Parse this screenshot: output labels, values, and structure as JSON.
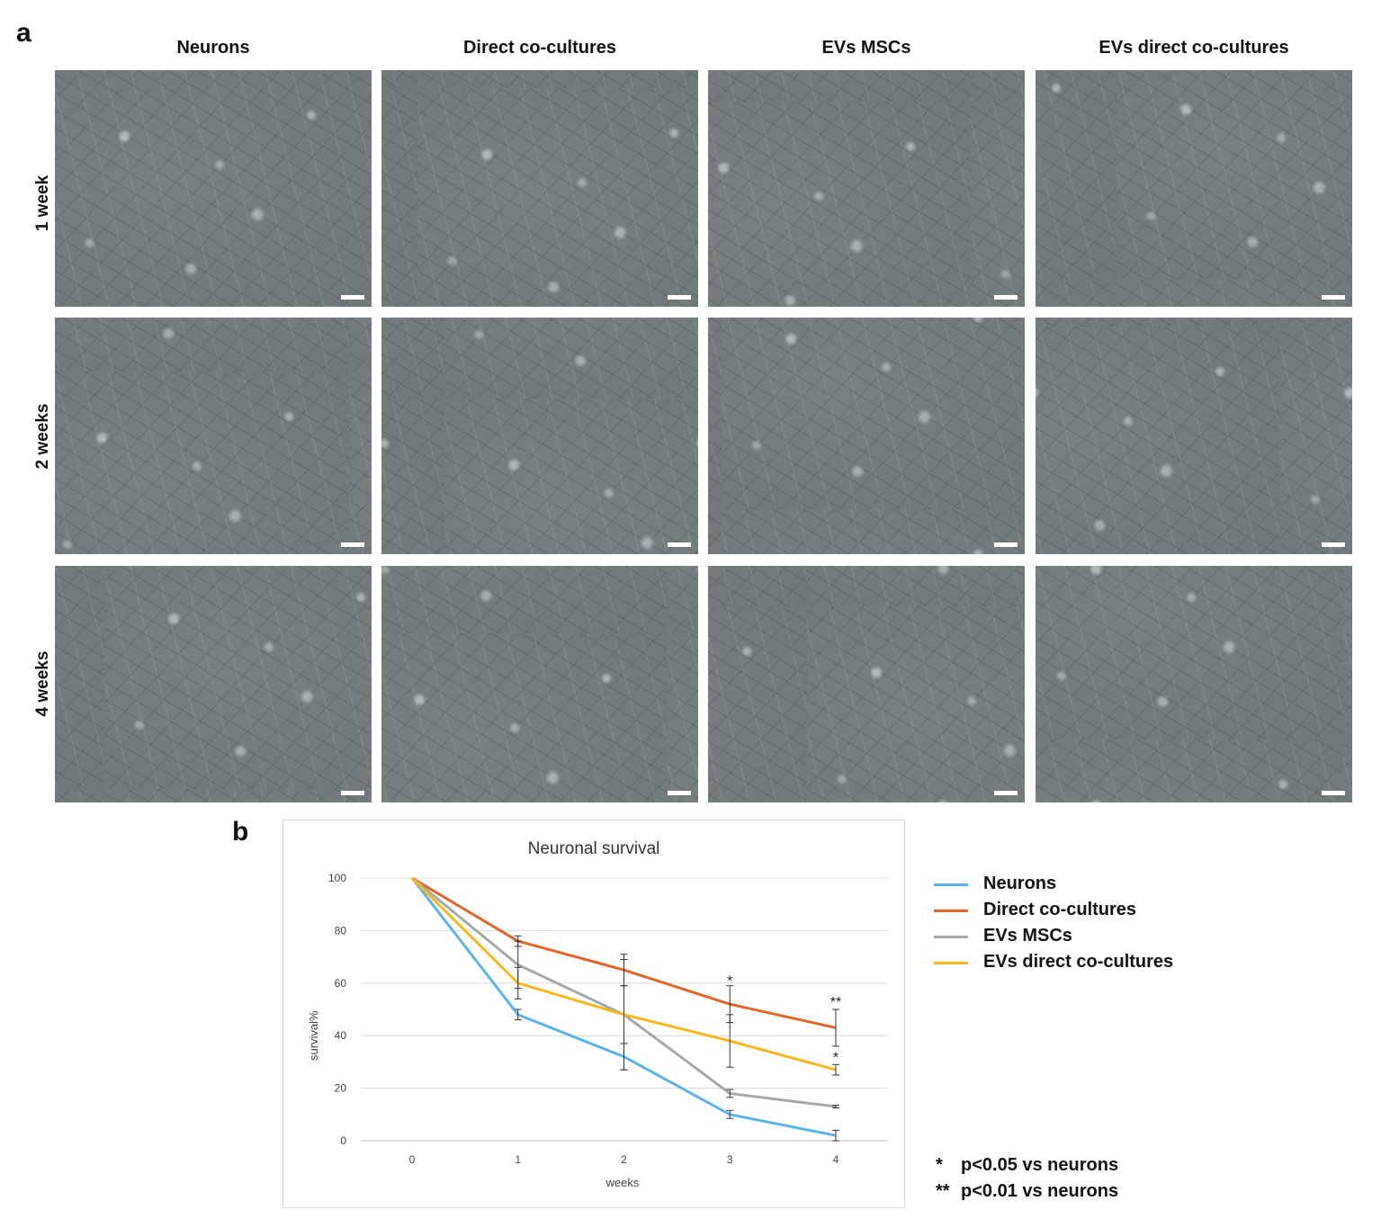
{
  "panel_a": {
    "letter": "a",
    "columns": [
      "Neurons",
      "Direct co-cultures",
      "EVs MSCs",
      "EVs direct co-cultures"
    ],
    "rows": [
      "1 week",
      "2 weeks",
      "4 weeks"
    ]
  },
  "panel_b": {
    "letter": "b",
    "legend": [
      "Neurons",
      "Direct co-cultures",
      "EVs MSCs",
      "EVs direct co-cultures"
    ],
    "notes": [
      {
        "symbol": "*",
        "text": "p<0.05 vs neurons"
      },
      {
        "symbol": "**",
        "text": "p<0.01 vs neurons"
      }
    ]
  },
  "chart_data": {
    "type": "line",
    "title": "Neuronal survival",
    "xlabel": "weeks",
    "ylabel": "survival%",
    "x": [
      0,
      1,
      2,
      3,
      4
    ],
    "xlim": [
      0,
      4
    ],
    "ylim": [
      0,
      100
    ],
    "yticks": [
      0,
      20,
      40,
      60,
      80,
      100
    ],
    "grid": true,
    "legend_position": "right",
    "series": [
      {
        "name": "Neurons",
        "color": "#5bb4e5",
        "values": [
          100,
          48,
          32,
          10,
          2
        ],
        "errors": [
          0,
          2,
          5,
          1.5,
          2
        ]
      },
      {
        "name": "Direct co-cultures",
        "color": "#e0662a",
        "values": [
          100,
          76,
          65,
          52,
          43
        ],
        "errors": [
          0,
          2,
          6,
          7,
          7
        ]
      },
      {
        "name": "EVs MSCs",
        "color": "#a3a9aa",
        "values": [
          100,
          67,
          48,
          18,
          13
        ],
        "errors": [
          0,
          9,
          21,
          1.5,
          0.5
        ]
      },
      {
        "name": "EVs direct co-cultures",
        "color": "#f7b81f",
        "values": [
          100,
          60,
          48,
          38,
          27
        ],
        "errors": [
          0,
          6,
          11,
          10,
          2
        ]
      }
    ],
    "annotations": [
      {
        "x": 3,
        "y": 59,
        "text": "*"
      },
      {
        "x": 4,
        "y": 51,
        "text": "**"
      },
      {
        "x": 4,
        "y": 30,
        "text": "*"
      }
    ]
  }
}
